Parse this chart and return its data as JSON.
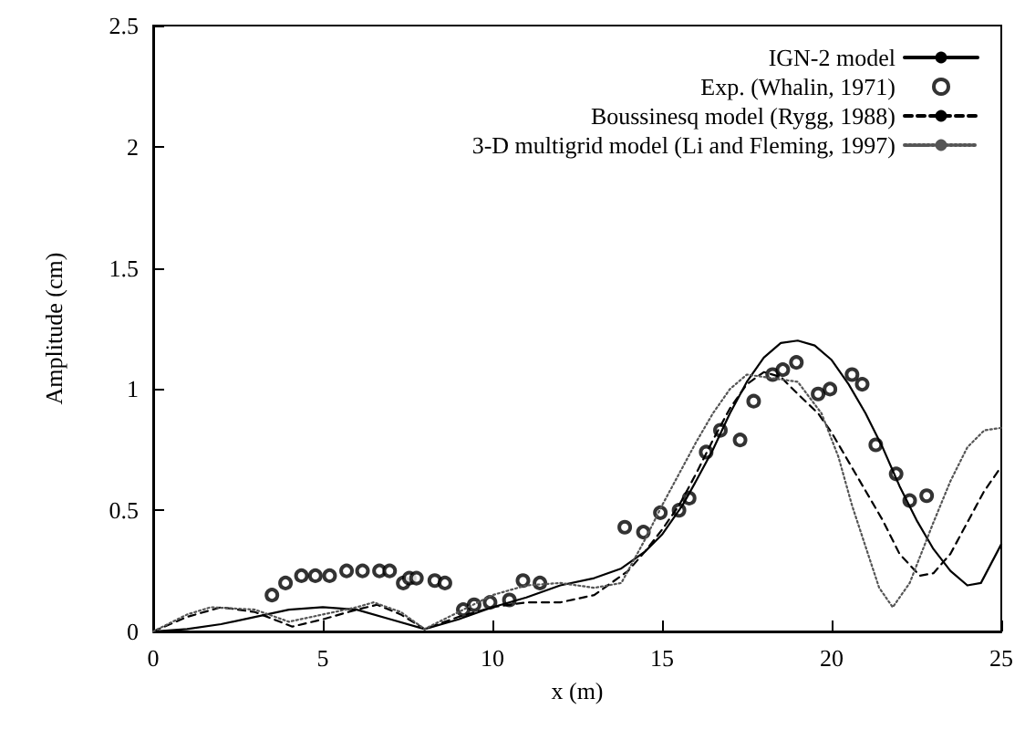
{
  "chart_data": {
    "type": "line",
    "xlabel": "x (m)",
    "ylabel": "Amplitude (cm)",
    "xlim": [
      0,
      25
    ],
    "xticks": [
      0,
      5,
      10,
      15,
      20,
      25
    ],
    "ylim": [
      0,
      2.5
    ],
    "yticks": [
      0,
      0.5,
      1,
      1.5,
      2,
      2.5
    ],
    "grid": false,
    "legend": "top right",
    "series": [
      {
        "name": "IGN-2 model",
        "color": "#000000",
        "line_style": "solid",
        "marker": "none",
        "x": [
          0,
          1,
          2,
          3,
          4,
          5,
          6,
          7,
          8,
          9,
          10,
          11,
          12,
          13,
          13.8,
          14.5,
          15,
          15.6,
          16,
          16.5,
          17,
          17.5,
          18,
          18.5,
          19,
          19.5,
          20,
          20.5,
          21,
          21.5,
          22,
          22.5,
          23,
          23.5,
          24,
          24.4,
          25
        ],
        "values": [
          0,
          0.01,
          0.03,
          0.06,
          0.09,
          0.1,
          0.09,
          0.05,
          0.01,
          0.05,
          0.1,
          0.14,
          0.19,
          0.22,
          0.26,
          0.33,
          0.4,
          0.52,
          0.62,
          0.75,
          0.9,
          1.03,
          1.13,
          1.19,
          1.2,
          1.18,
          1.12,
          1.02,
          0.9,
          0.76,
          0.6,
          0.46,
          0.34,
          0.25,
          0.19,
          0.2,
          0.36
        ]
      },
      {
        "name": "Exp. (Whalin, 1971)",
        "color": "#000000",
        "type": "scatter",
        "marker": "circle",
        "x": [
          3.5,
          3.9,
          4.37,
          4.78,
          5.2,
          5.7,
          6.17,
          6.67,
          6.97,
          7.37,
          7.55,
          7.76,
          8.3,
          8.6,
          9.14,
          9.46,
          9.93,
          10.5,
          10.9,
          11.4,
          13.9,
          14.45,
          14.95,
          15.5,
          15.8,
          16.3,
          16.72,
          17.3,
          17.7,
          18.26,
          18.56,
          18.96,
          19.6,
          19.95,
          20.6,
          20.9,
          21.3,
          21.9,
          22.3,
          22.8
        ],
        "values": [
          0.15,
          0.2,
          0.23,
          0.23,
          0.23,
          0.25,
          0.25,
          0.25,
          0.25,
          0.2,
          0.22,
          0.22,
          0.21,
          0.2,
          0.09,
          0.11,
          0.12,
          0.13,
          0.21,
          0.2,
          0.43,
          0.41,
          0.49,
          0.5,
          0.55,
          0.74,
          0.83,
          0.79,
          0.95,
          1.06,
          1.08,
          1.11,
          0.98,
          1.0,
          1.06,
          1.02,
          0.77,
          0.65,
          0.54,
          0.56
        ]
      },
      {
        "name": "Boussinesq model (Rygg, 1988)",
        "color": "#000000",
        "line_style": "dashed",
        "marker": "none",
        "x": [
          0,
          1,
          2,
          3,
          4.1,
          5,
          6,
          6.6,
          7.3,
          8,
          9,
          10,
          11,
          12,
          13,
          14,
          14.5,
          15,
          15.5,
          16,
          16.5,
          17,
          17.5,
          18,
          18.5,
          19,
          19.6,
          20,
          20.5,
          21,
          21.5,
          22,
          22.6,
          23,
          23.5,
          24,
          24.5,
          25
        ],
        "values": [
          0,
          0.06,
          0.1,
          0.08,
          0.02,
          0.05,
          0.09,
          0.11,
          0.07,
          0.01,
          0.06,
          0.1,
          0.12,
          0.12,
          0.15,
          0.25,
          0.33,
          0.42,
          0.52,
          0.65,
          0.79,
          0.92,
          1.02,
          1.07,
          1.05,
          0.98,
          0.9,
          0.82,
          0.7,
          0.58,
          0.46,
          0.32,
          0.23,
          0.24,
          0.32,
          0.45,
          0.58,
          0.68
        ]
      },
      {
        "name": "3-D multigrid model (Li and Fleming, 1997)",
        "color": "#555555",
        "line_style": "dotted",
        "marker": "none",
        "x": [
          0,
          1,
          1.7,
          3,
          4,
          5,
          6,
          6.5,
          7.3,
          8,
          9,
          10,
          11,
          12,
          13,
          13.8,
          14.5,
          15,
          15.5,
          16,
          16.5,
          17,
          17.5,
          18,
          18.5,
          19,
          19.7,
          20.2,
          20.6,
          21,
          21.4,
          21.8,
          22.3,
          23,
          23.5,
          24,
          24.5,
          25
        ],
        "values": [
          0,
          0.07,
          0.1,
          0.09,
          0.04,
          0.07,
          0.1,
          0.12,
          0.08,
          0.01,
          0.08,
          0.15,
          0.19,
          0.2,
          0.18,
          0.2,
          0.38,
          0.52,
          0.65,
          0.78,
          0.9,
          1.0,
          1.06,
          1.05,
          1.04,
          1.03,
          0.9,
          0.72,
          0.52,
          0.35,
          0.18,
          0.1,
          0.2,
          0.45,
          0.62,
          0.76,
          0.83,
          0.84
        ]
      }
    ]
  }
}
